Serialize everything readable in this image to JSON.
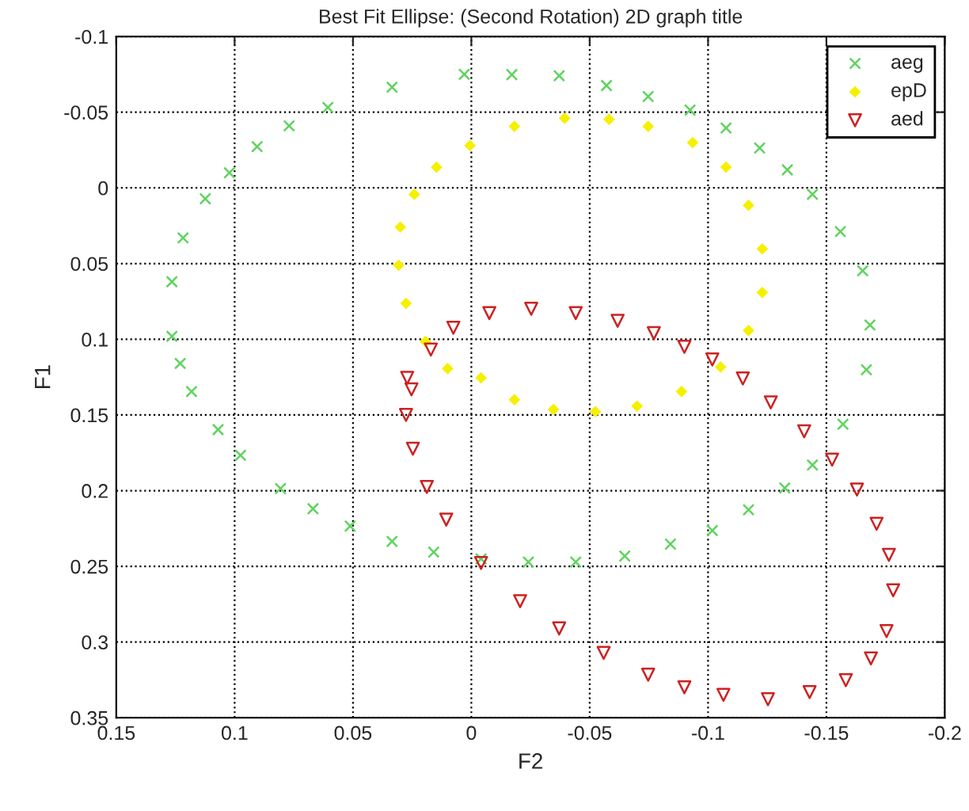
{
  "chart_data": {
    "type": "scatter",
    "title": "Best Fit Ellipse: (Second Rotation) 2D graph title",
    "xlabel": "F2",
    "ylabel": "F1",
    "xlim": [
      0.15,
      -0.2
    ],
    "ylim": [
      0.35,
      -0.1
    ],
    "xticks": [
      0.15,
      0.1,
      0.05,
      0,
      -0.05,
      -0.1,
      -0.15,
      -0.2
    ],
    "yticks": [
      -0.1,
      -0.05,
      0,
      0.05,
      0.1,
      0.15,
      0.2,
      0.25,
      0.3,
      0.35
    ],
    "grid": true,
    "legend": "top right",
    "series": [
      {
        "name": "aeg",
        "color": "#5fd35f",
        "marker": "cross",
        "x": [
          0.003,
          0.0335,
          0.0606,
          0.077,
          0.0905,
          0.1022,
          0.1124,
          0.1218,
          0.1265,
          0.1265,
          0.123,
          0.1182,
          0.107,
          0.0975,
          0.0806,
          0.0669,
          0.0512,
          0.0335,
          0.0159,
          -0.0041,
          -0.0241,
          -0.0441,
          -0.0648,
          -0.0841,
          -0.1018,
          -0.1171,
          -0.1324,
          -0.1441,
          -0.157,
          -0.1669,
          -0.1684,
          -0.1653,
          -0.1559,
          -0.1441,
          -0.1335,
          -0.1218,
          -0.1076,
          -0.0924,
          -0.0747,
          -0.0571,
          -0.0371,
          -0.0171
        ],
        "values": [
          -0.075,
          -0.0665,
          -0.0532,
          -0.041,
          -0.0273,
          -0.01,
          0.0072,
          0.033,
          0.062,
          0.098,
          0.116,
          0.1345,
          0.1597,
          0.1766,
          0.1986,
          0.2119,
          0.2234,
          0.2335,
          0.2406,
          0.245,
          0.2471,
          0.2471,
          0.2432,
          0.2353,
          0.2263,
          0.2126,
          0.1982,
          0.1831,
          0.1561,
          0.1201,
          0.0906,
          0.0547,
          0.0288,
          0.0043,
          -0.0119,
          -0.0263,
          -0.0396,
          -0.0514,
          -0.0604,
          -0.0676,
          -0.0741,
          -0.0748
        ]
      },
      {
        "name": "epD",
        "color": "#f5f000",
        "marker": "diamond",
        "x": [
          -0.0394,
          -0.0182,
          0.0006,
          0.0147,
          0.0241,
          0.03,
          0.0307,
          0.0276,
          0.0194,
          0.01,
          -0.0041,
          -0.0182,
          -0.0347,
          -0.0524,
          -0.07,
          -0.0888,
          -0.1053,
          -0.1171,
          -0.1229,
          -0.1229,
          -0.1171,
          -0.1076,
          -0.0935,
          -0.0747,
          -0.0582
        ],
        "values": [
          -0.046,
          -0.0406,
          -0.028,
          -0.0137,
          0.0043,
          0.0259,
          0.0511,
          0.0763,
          0.1014,
          0.1194,
          0.1255,
          0.1399,
          0.1464,
          0.1478,
          0.1442,
          0.1345,
          0.1183,
          0.0942,
          0.0691,
          0.0403,
          0.0115,
          -0.0137,
          -0.0299,
          -0.0406,
          -0.0453
        ]
      },
      {
        "name": "aed",
        "color": "#cc2222",
        "marker": "triangle",
        "x": [
          0.0253,
          0.0171,
          0.0076,
          -0.0076,
          -0.0253,
          -0.0441,
          -0.0618,
          -0.0771,
          -0.09,
          -0.1018,
          -0.1147,
          -0.1265,
          -0.1406,
          -0.1524,
          -0.1629,
          -0.1712,
          -0.1764,
          -0.1782,
          -0.1754,
          -0.1688,
          -0.1582,
          -0.1429,
          -0.1253,
          -0.1065,
          -0.09,
          -0.0747,
          -0.0559,
          -0.0371,
          -0.0206,
          -0.0041,
          0.0106,
          0.0188,
          0.0247,
          0.0276,
          0.0271
        ],
        "values": [
          0.1331,
          0.1068,
          0.0924,
          0.0827,
          0.0799,
          0.0827,
          0.0878,
          0.096,
          0.105,
          0.1133,
          0.1259,
          0.1417,
          0.1608,
          0.1795,
          0.1993,
          0.2219,
          0.2424,
          0.2658,
          0.2928,
          0.3108,
          0.3252,
          0.3331,
          0.3378,
          0.3349,
          0.3299,
          0.3216,
          0.3072,
          0.291,
          0.273,
          0.2478,
          0.2191,
          0.1975,
          0.1723,
          0.15,
          0.1255
        ]
      }
    ]
  }
}
